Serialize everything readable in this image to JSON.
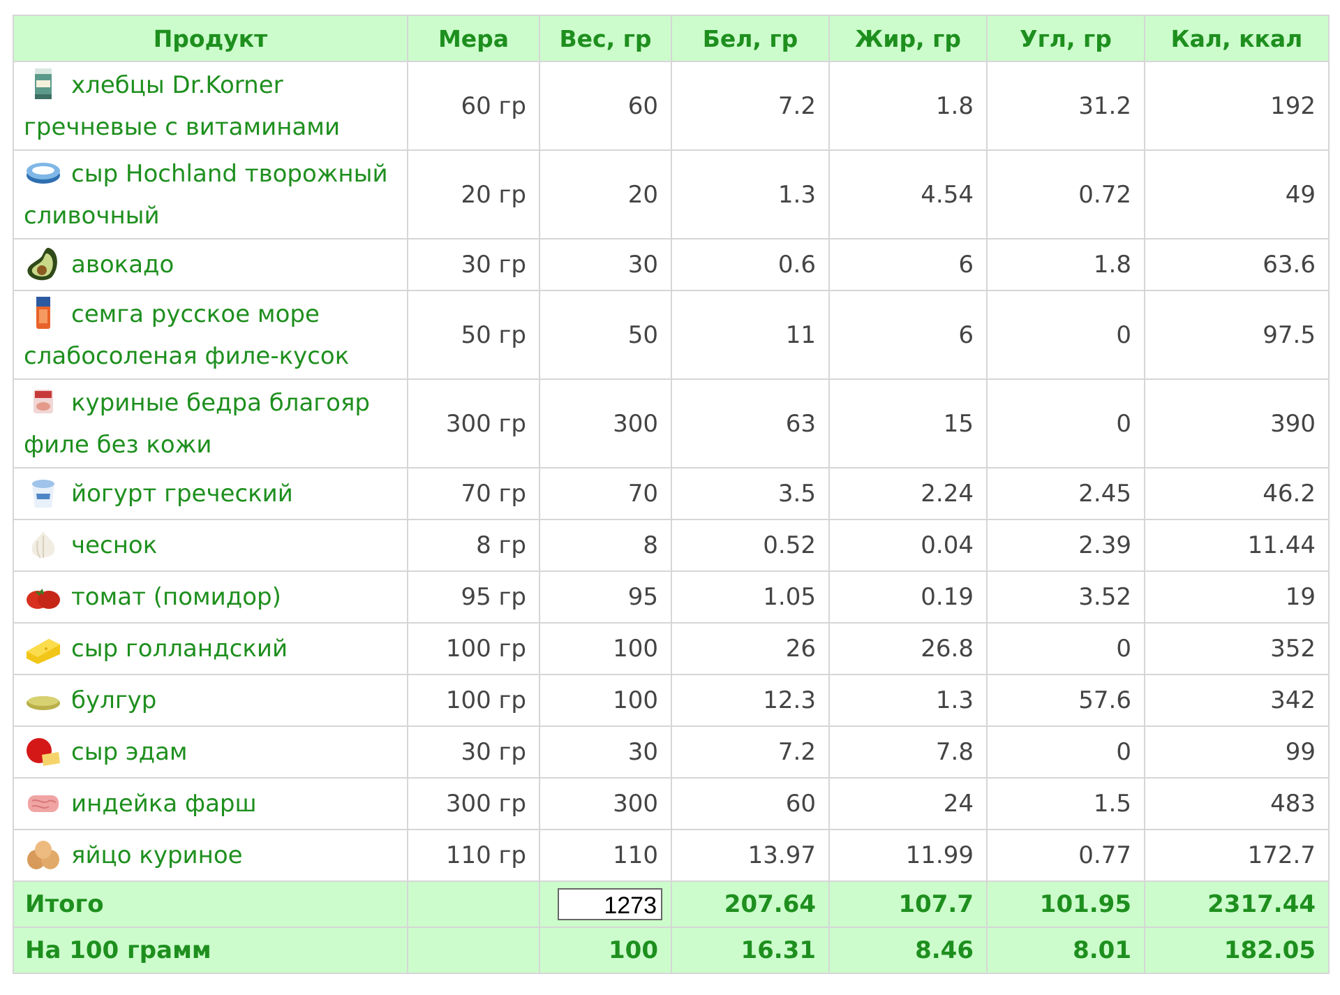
{
  "headers": [
    "Продукт",
    "Мера",
    "Вес, гр",
    "Бел, гр",
    "Жир, гр",
    "Угл, гр",
    "Кал, ккал"
  ],
  "rows": [
    {
      "icon": "crispbread-pack-icon",
      "name": "хлебцы Dr.Korner гречневые с витаминами",
      "measure": "60 гр",
      "weight": "60",
      "protein": "7.2",
      "fat": "1.8",
      "carbs": "31.2",
      "kcal": "192"
    },
    {
      "icon": "cream-cheese-icon",
      "name": "сыр Hochland творожный сливочный",
      "measure": "20 гр",
      "weight": "20",
      "protein": "1.3",
      "fat": "4.54",
      "carbs": "0.72",
      "kcal": "49"
    },
    {
      "icon": "avocado-icon",
      "name": "авокадо",
      "measure": "30 гр",
      "weight": "30",
      "protein": "0.6",
      "fat": "6",
      "carbs": "1.8",
      "kcal": "63.6"
    },
    {
      "icon": "salmon-pack-icon",
      "name": "семга русское море слабосоленая филе-кусок",
      "measure": "50 гр",
      "weight": "50",
      "protein": "11",
      "fat": "6",
      "carbs": "0",
      "kcal": "97.5"
    },
    {
      "icon": "chicken-thigh-pack-icon",
      "name": "куриные бедра благояр филе без кожи",
      "measure": "300 гр",
      "weight": "300",
      "protein": "63",
      "fat": "15",
      "carbs": "0",
      "kcal": "390"
    },
    {
      "icon": "yogurt-cup-icon",
      "name": "йогурт греческий",
      "measure": "70 гр",
      "weight": "70",
      "protein": "3.5",
      "fat": "2.24",
      "carbs": "2.45",
      "kcal": "46.2"
    },
    {
      "icon": "garlic-icon",
      "name": "чеснок",
      "measure": "8 гр",
      "weight": "8",
      "protein": "0.52",
      "fat": "0.04",
      "carbs": "2.39",
      "kcal": "11.44"
    },
    {
      "icon": "tomato-icon",
      "name": "томат (помидор)",
      "measure": "95 гр",
      "weight": "95",
      "protein": "1.05",
      "fat": "0.19",
      "carbs": "3.52",
      "kcal": "19"
    },
    {
      "icon": "cheese-block-icon",
      "name": "сыр голландский",
      "measure": "100 гр",
      "weight": "100",
      "protein": "26",
      "fat": "26.8",
      "carbs": "0",
      "kcal": "352"
    },
    {
      "icon": "bulgur-icon",
      "name": "булгур",
      "measure": "100 гр",
      "weight": "100",
      "protein": "12.3",
      "fat": "1.3",
      "carbs": "57.6",
      "kcal": "342"
    },
    {
      "icon": "edam-cheese-icon",
      "name": "сыр эдам",
      "measure": "30 гр",
      "weight": "30",
      "protein": "7.2",
      "fat": "7.8",
      "carbs": "0",
      "kcal": "99"
    },
    {
      "icon": "minced-turkey-icon",
      "name": "индейка фарш",
      "measure": "300 гр",
      "weight": "300",
      "protein": "60",
      "fat": "24",
      "carbs": "1.5",
      "kcal": "483"
    },
    {
      "icon": "eggs-icon",
      "name": "яйцо куриное",
      "measure": "110 гр",
      "weight": "110",
      "protein": "13.97",
      "fat": "11.99",
      "carbs": "0.77",
      "kcal": "172.7"
    }
  ],
  "total": {
    "label": "Итого",
    "weight": "1273",
    "protein": "207.64",
    "fat": "107.7",
    "carbs": "101.95",
    "kcal": "2317.44"
  },
  "per100": {
    "label": "На 100 грамм",
    "weight": "100",
    "protein": "16.31",
    "fat": "8.46",
    "carbs": "8.01",
    "kcal": "182.05"
  },
  "colors": {
    "accent_green": "#1e8f1e",
    "header_bg": "#ccfccc",
    "border": "#d6d6d6",
    "value_text": "#444444"
  }
}
